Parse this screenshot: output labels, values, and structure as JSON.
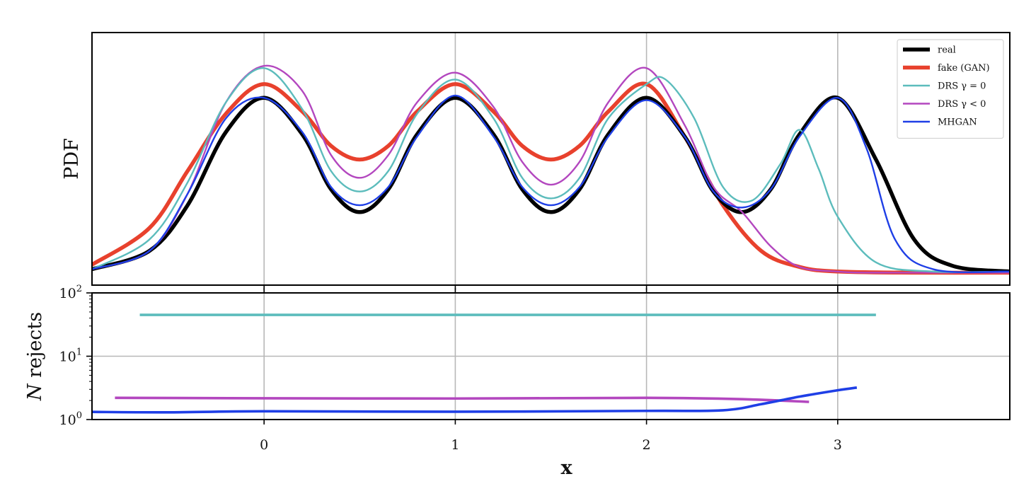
{
  "chart_data": [
    {
      "type": "line",
      "panel": "top",
      "ylabel": "PDF",
      "xlim": [
        -0.9,
        3.9
      ],
      "x_ticks": [
        0,
        1,
        2,
        3
      ],
      "y_scale": "linear",
      "y_ticks_shown": false,
      "grid": "vertical lines at x ticks",
      "legend": {
        "placement": "top-right",
        "entries": [
          {
            "label": "real",
            "color": "#000000",
            "weight": "thick"
          },
          {
            "label": "fake (GAN)",
            "color": "#e8412d",
            "weight": "thick"
          },
          {
            "label": "DRS γ = 0",
            "color": "#5cbcbc",
            "weight": "thin"
          },
          {
            "label": "DRS γ < 0",
            "color": "#b347bf",
            "weight": "thin"
          },
          {
            "label": "MHGAN",
            "color": "#1f3fe6",
            "weight": "thin"
          }
        ]
      },
      "series": [
        {
          "name": "real",
          "color": "#000000",
          "x": [
            -0.9,
            -0.6,
            -0.4,
            -0.2,
            0,
            0.2,
            0.35,
            0.5,
            0.65,
            0.8,
            1.0,
            1.2,
            1.35,
            1.5,
            1.65,
            1.8,
            2.0,
            2.2,
            2.35,
            2.5,
            2.65,
            2.8,
            3.0,
            3.2,
            3.4,
            3.6,
            3.9
          ],
          "y": [
            0.02,
            0.1,
            0.3,
            0.62,
            0.77,
            0.61,
            0.37,
            0.27,
            0.37,
            0.61,
            0.77,
            0.61,
            0.37,
            0.27,
            0.37,
            0.61,
            0.77,
            0.6,
            0.36,
            0.27,
            0.37,
            0.61,
            0.77,
            0.5,
            0.15,
            0.035,
            0.01
          ]
        },
        {
          "name": "fake (GAN)",
          "color": "#e8412d",
          "x": [
            -0.9,
            -0.6,
            -0.4,
            -0.2,
            0,
            0.2,
            0.35,
            0.5,
            0.65,
            0.8,
            1.0,
            1.2,
            1.35,
            1.5,
            1.65,
            1.8,
            2.0,
            2.2,
            2.4,
            2.6,
            2.8,
            3.0,
            3.4,
            3.9
          ],
          "y": [
            0.04,
            0.2,
            0.45,
            0.7,
            0.83,
            0.71,
            0.56,
            0.5,
            0.56,
            0.71,
            0.83,
            0.71,
            0.56,
            0.5,
            0.56,
            0.71,
            0.83,
            0.6,
            0.3,
            0.1,
            0.03,
            0.01,
            0.005,
            0.005
          ]
        },
        {
          "name": "DRS γ = 0",
          "color": "#5cbcbc",
          "x": [
            -0.9,
            -0.6,
            -0.4,
            -0.2,
            0,
            0.2,
            0.35,
            0.5,
            0.65,
            0.8,
            1.0,
            1.2,
            1.35,
            1.5,
            1.65,
            1.8,
            2.0,
            2.1,
            2.25,
            2.4,
            2.55,
            2.7,
            2.8,
            2.9,
            3.0,
            3.2,
            3.5,
            3.9
          ],
          "y": [
            0.02,
            0.15,
            0.4,
            0.75,
            0.9,
            0.72,
            0.45,
            0.36,
            0.45,
            0.7,
            0.85,
            0.68,
            0.42,
            0.33,
            0.42,
            0.68,
            0.83,
            0.85,
            0.68,
            0.38,
            0.32,
            0.48,
            0.63,
            0.46,
            0.25,
            0.05,
            0.01,
            0.01
          ]
        },
        {
          "name": "DRS γ < 0",
          "color": "#b347bf",
          "x": [
            -0.9,
            -0.6,
            -0.4,
            -0.2,
            0,
            0.2,
            0.35,
            0.5,
            0.65,
            0.8,
            1.0,
            1.2,
            1.35,
            1.5,
            1.65,
            1.8,
            2.0,
            2.2,
            2.35,
            2.5,
            2.65,
            2.8,
            3.0,
            3.2,
            3.9
          ],
          "y": [
            0.02,
            0.1,
            0.35,
            0.75,
            0.91,
            0.8,
            0.52,
            0.42,
            0.52,
            0.75,
            0.88,
            0.73,
            0.49,
            0.39,
            0.49,
            0.75,
            0.9,
            0.65,
            0.38,
            0.27,
            0.12,
            0.03,
            0.01,
            0.005,
            0.005
          ]
        },
        {
          "name": "MHGAN",
          "color": "#1f3fe6",
          "x": [
            -0.9,
            -0.6,
            -0.4,
            -0.2,
            0,
            0.2,
            0.35,
            0.5,
            0.65,
            0.8,
            1.0,
            1.2,
            1.35,
            1.5,
            1.65,
            1.8,
            2.0,
            2.2,
            2.35,
            2.5,
            2.65,
            2.8,
            3.0,
            3.15,
            3.3,
            3.5,
            3.9
          ],
          "y": [
            0.02,
            0.1,
            0.35,
            0.68,
            0.77,
            0.62,
            0.38,
            0.3,
            0.38,
            0.6,
            0.78,
            0.6,
            0.38,
            0.3,
            0.38,
            0.6,
            0.76,
            0.6,
            0.36,
            0.29,
            0.37,
            0.6,
            0.77,
            0.55,
            0.15,
            0.02,
            0.01
          ]
        }
      ]
    },
    {
      "type": "line",
      "panel": "bottom",
      "ylabel": "N rejects",
      "xlabel": "x",
      "xlim": [
        -0.9,
        3.9
      ],
      "x_ticks": [
        0,
        1,
        2,
        3
      ],
      "y_scale": "log",
      "ylim": [
        1,
        100
      ],
      "y_ticks": [
        {
          "value": 1,
          "label": "10^0"
        },
        {
          "value": 10,
          "label": "10^1"
        },
        {
          "value": 100,
          "label": "10^2"
        }
      ],
      "grid": "vertical lines at x ticks, horizontal line at 10^1",
      "series": [
        {
          "name": "DRS γ = 0",
          "color": "#5cbcbc",
          "x": [
            -0.65,
            3.2
          ],
          "y": [
            45,
            45
          ]
        },
        {
          "name": "DRS γ < 0",
          "color": "#b347bf",
          "x": [
            -0.78,
            0,
            1,
            2,
            2.5,
            2.85
          ],
          "y": [
            2.2,
            2.17,
            2.15,
            2.2,
            2.1,
            1.9
          ]
        },
        {
          "name": "MHGAN",
          "color": "#1f3fe6",
          "x": [
            -0.9,
            -0.5,
            0,
            1,
            2,
            2.4,
            2.6,
            2.8,
            3.0,
            3.1
          ],
          "y": [
            1.32,
            1.3,
            1.35,
            1.33,
            1.37,
            1.4,
            1.75,
            2.3,
            2.9,
            3.2
          ]
        }
      ]
    }
  ]
}
